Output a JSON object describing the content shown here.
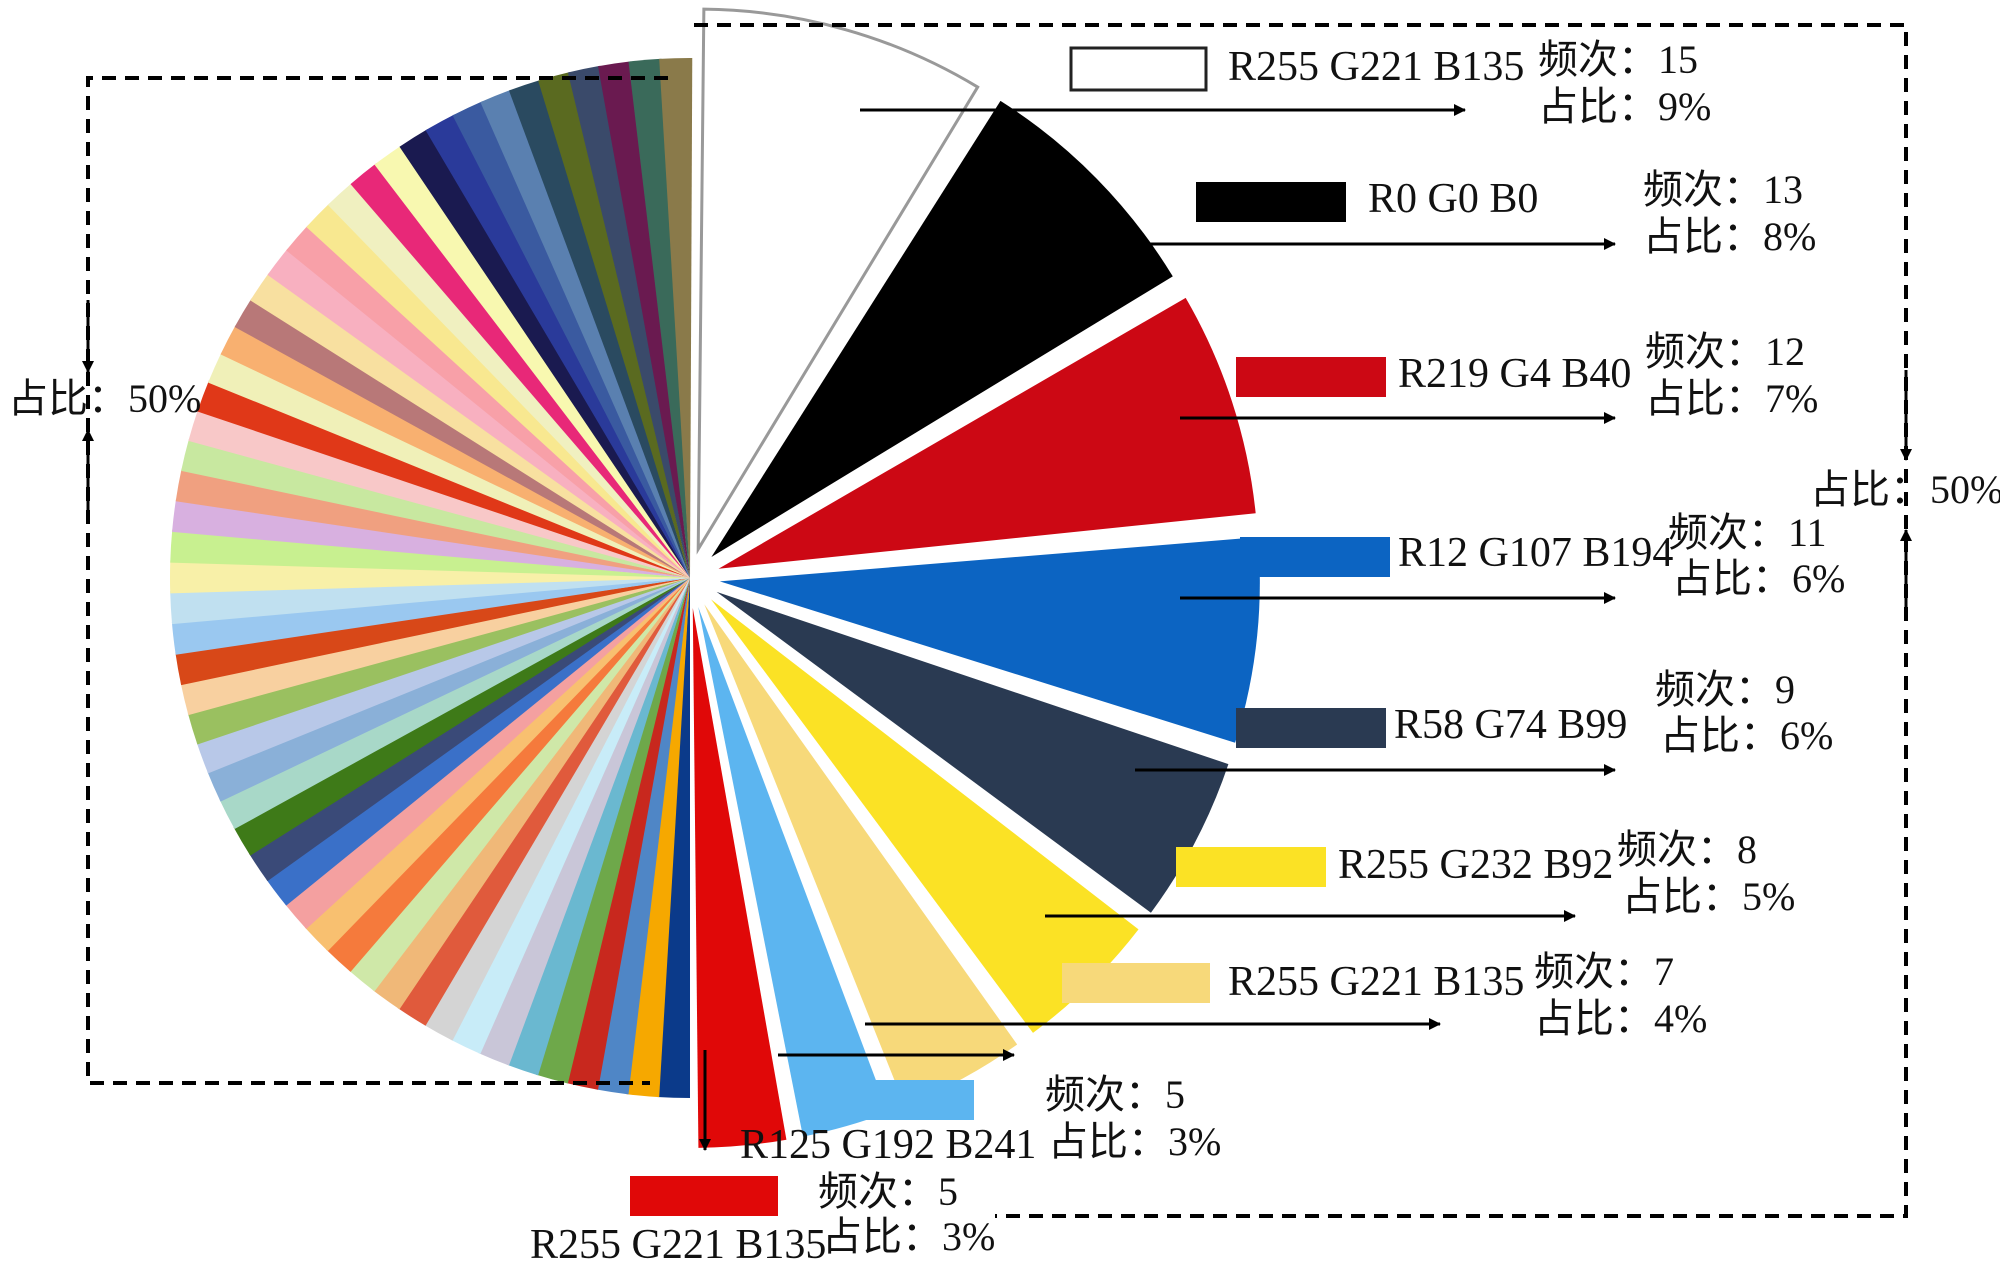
{
  "chart_data": {
    "type": "pie",
    "title": "",
    "slices": [
      {
        "rgb": "R255 G221 B135",
        "color": "#ffffff",
        "stroke": "#999999",
        "freq_label": "频次：15",
        "ratio_label": "占比：9%",
        "frequency": 15,
        "percent": 9
      },
      {
        "rgb": "R0 G0 B0",
        "color": "#000000",
        "freq_label": "频次：13",
        "ratio_label": "占比：8%",
        "frequency": 13,
        "percent": 8
      },
      {
        "rgb": "R219 G4 B40",
        "color": "#cc0814",
        "freq_label": "频次：12",
        "ratio_label": "占比：7%",
        "frequency": 12,
        "percent": 7
      },
      {
        "rgb": "R12 G107 B194",
        "color": "#0c64c2",
        "freq_label": "频次：11",
        "ratio_label": "占比：6%",
        "frequency": 11,
        "percent": 6
      },
      {
        "rgb": "R58 G74 B99",
        "color": "#2a3a52",
        "freq_label": "频次：9",
        "ratio_label": "占比：6%",
        "frequency": 9,
        "percent": 6
      },
      {
        "rgb": "R255 G232 B92",
        "color": "#fbe225",
        "freq_label": "频次：8",
        "ratio_label": "占比：5%",
        "frequency": 8,
        "percent": 5
      },
      {
        "rgb": "R255 G221 B135",
        "color": "#f7d97a",
        "freq_label": "频次：7",
        "ratio_label": "占比：4%",
        "frequency": 7,
        "percent": 4
      },
      {
        "rgb": "R125 G192 B241",
        "color": "#5cb5f0",
        "freq_label": "频次：5",
        "ratio_label": "占比：3%",
        "frequency": 5,
        "percent": 3
      },
      {
        "rgb": "R255 G221 B135",
        "color": "#e00808",
        "freq_label": "频次：5",
        "ratio_label": "占比：3%",
        "frequency": 5,
        "percent": 3
      }
    ],
    "right_total_label": "占比：50%",
    "left_total_label": "占比：50%",
    "other_colors": [
      "#0b3a8a",
      "#f6a800",
      "#4f86c6",
      "#c8281e",
      "#6ea84a",
      "#6ab8d0",
      "#c9c6d8",
      "#c8ecf8",
      "#d4d4d4",
      "#e05a3c",
      "#f0b878",
      "#cfe8a8",
      "#f57a3c",
      "#f8c070",
      "#f4a0a0",
      "#3a70c8",
      "#3a4a78",
      "#3e7a18",
      "#a8d8c8",
      "#8ab0d8",
      "#b8c8e8",
      "#9ac060",
      "#f8d0a0",
      "#d84818",
      "#9ac8f0",
      "#c0e0f0",
      "#f8f0a8",
      "#c8f090",
      "#d8b0e0",
      "#f0a080",
      "#c8e8a0",
      "#f8c8c8",
      "#e03818",
      "#f0f0b8",
      "#f8b070",
      "#b87878",
      "#f8e0a0",
      "#f8b0c0",
      "#f8a0a8",
      "#f8e890",
      "#f0f0c0",
      "#e82878",
      "#f8f8b0",
      "#1a1a50",
      "#2a3a9a",
      "#3a5aa0",
      "#5a80b0",
      "#2a4a60",
      "#5a6a20",
      "#3a4a6a",
      "#6a1a50",
      "#3a6a5a",
      "#8a7a4a"
    ]
  }
}
